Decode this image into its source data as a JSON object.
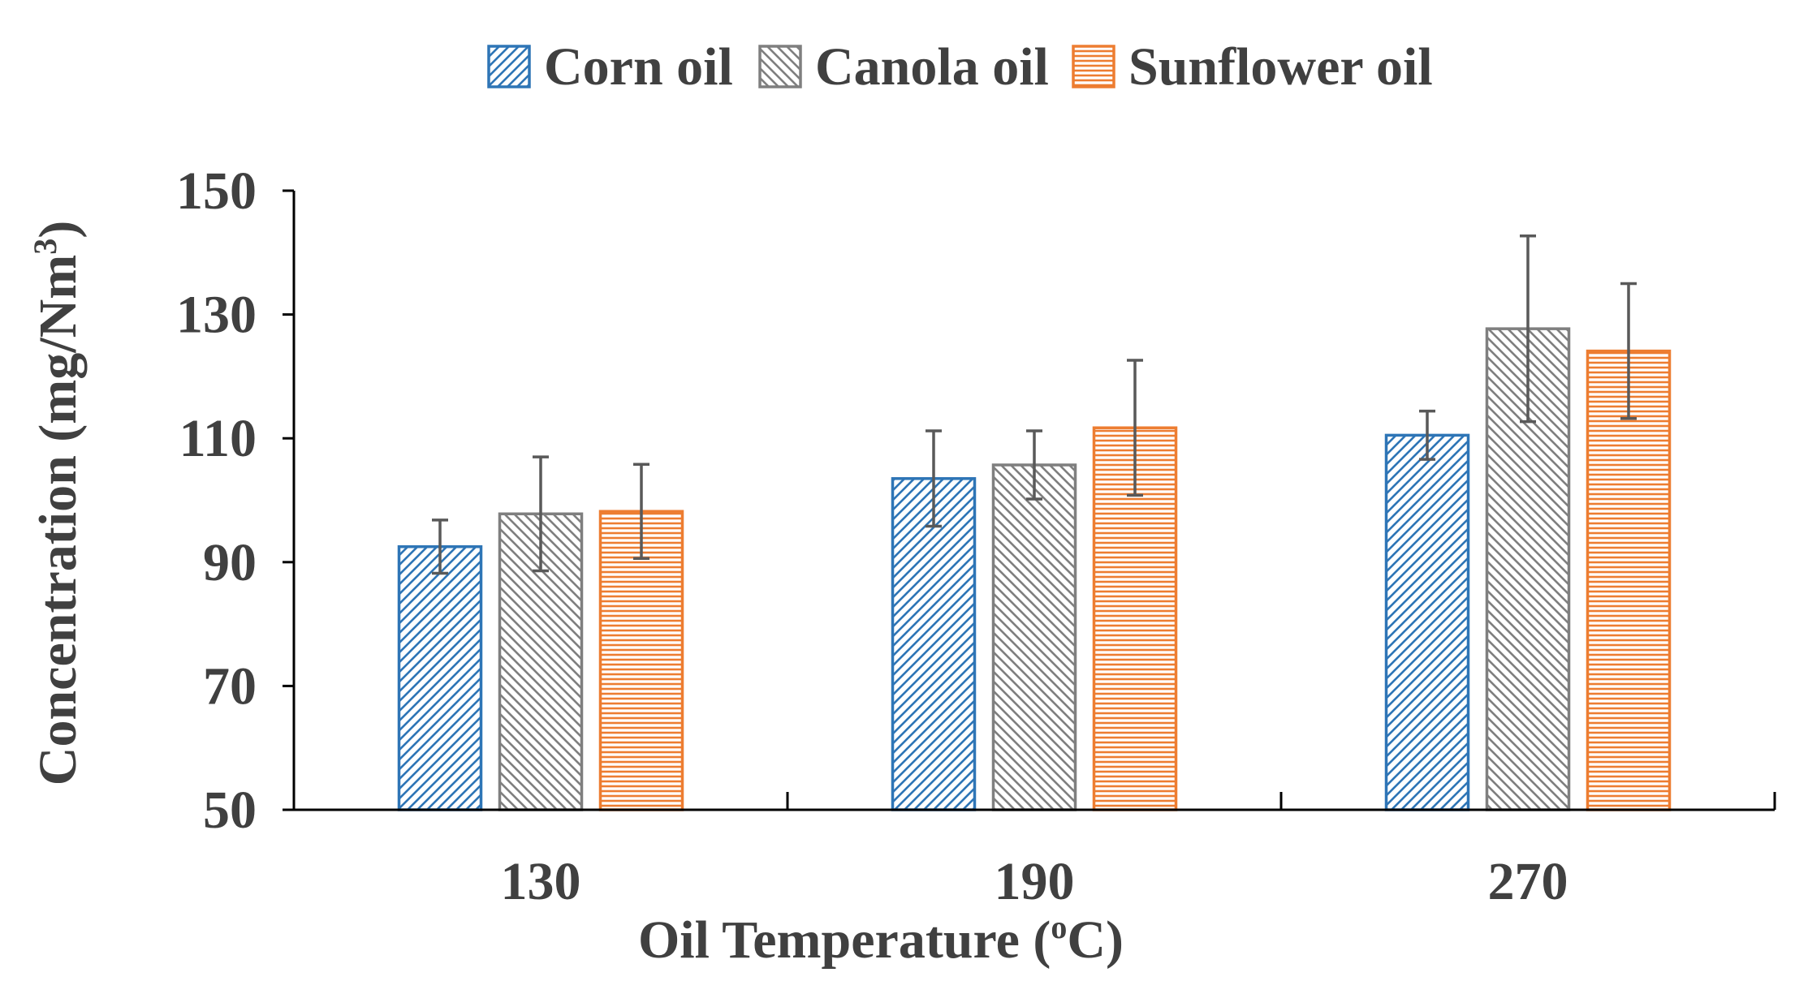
{
  "chart_data": {
    "type": "bar",
    "title": "",
    "xlabel": "Oil  Temperature (°C)",
    "xlabel_prefix": "Oil  Temperature (",
    "xlabel_degree": "o",
    "xlabel_suffix": "C)",
    "ylabel": "Concentration (mg/Nm³)",
    "ylabel_main": "Concentration (mg/Nm",
    "ylabel_sup": "3",
    "ylabel_close": ")",
    "ylim": [
      50,
      150
    ],
    "yticks": [
      50,
      70,
      90,
      110,
      130,
      150
    ],
    "grid": false,
    "legend_position": "top-center",
    "categories": [
      "130",
      "190",
      "270"
    ],
    "series": [
      {
        "name": "Corn oil",
        "color": "#2E75B6",
        "pattern": "diagonal-right",
        "values": [
          92.5,
          103.5,
          110.5
        ],
        "error": [
          4.3,
          7.7,
          3.9
        ]
      },
      {
        "name": "Canola oil",
        "color": "#7F7F7F",
        "pattern": "diagonal-left",
        "values": [
          97.8,
          105.7,
          127.7
        ],
        "error": [
          9.2,
          5.5,
          15.0
        ]
      },
      {
        "name": "Sunflower oil",
        "color": "#ED7D31",
        "pattern": "horizontal",
        "values": [
          98.2,
          111.7,
          124.1
        ],
        "error": [
          7.6,
          10.9,
          10.9
        ]
      }
    ]
  }
}
